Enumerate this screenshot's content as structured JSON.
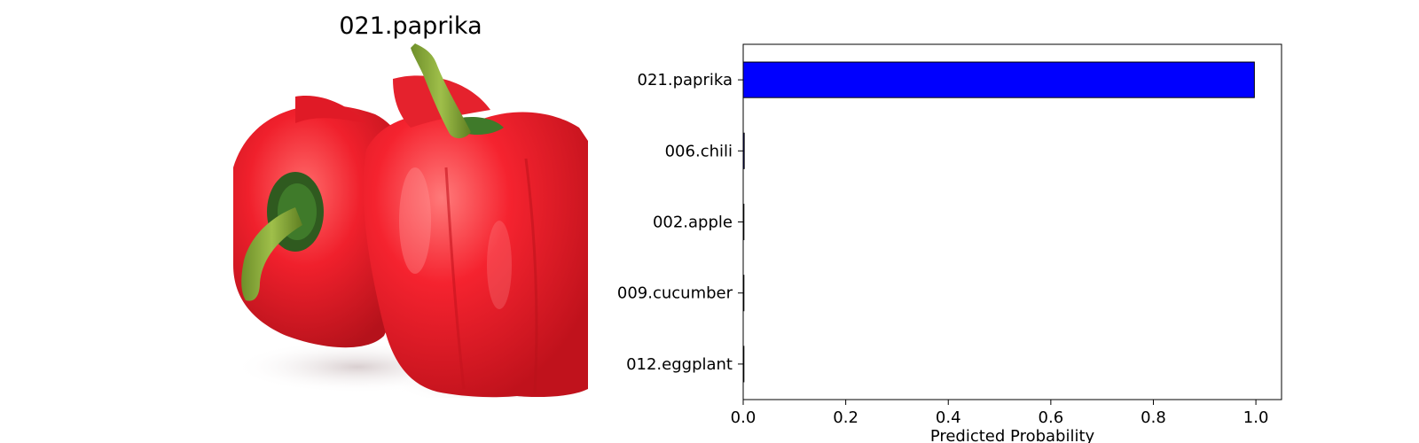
{
  "image_panel": {
    "title": "021.paprika",
    "photo": "red bell peppers"
  },
  "chart_data": {
    "type": "bar",
    "orientation": "horizontal",
    "categories": [
      "021.paprika",
      "006.chili",
      "002.apple",
      "009.cucumber",
      "012.eggplant"
    ],
    "values": [
      0.997,
      0.002,
      0.001,
      0.0003,
      0.0002
    ],
    "xlabel": "Predicted Probability",
    "ylabel": "",
    "title": "",
    "xlim": [
      0,
      1.05
    ],
    "xticks": [
      "0.0",
      "0.2",
      "0.4",
      "0.6",
      "0.8",
      "1.0"
    ],
    "grid": false,
    "bar_color": "#0000ff",
    "edge_color": "#000000"
  }
}
